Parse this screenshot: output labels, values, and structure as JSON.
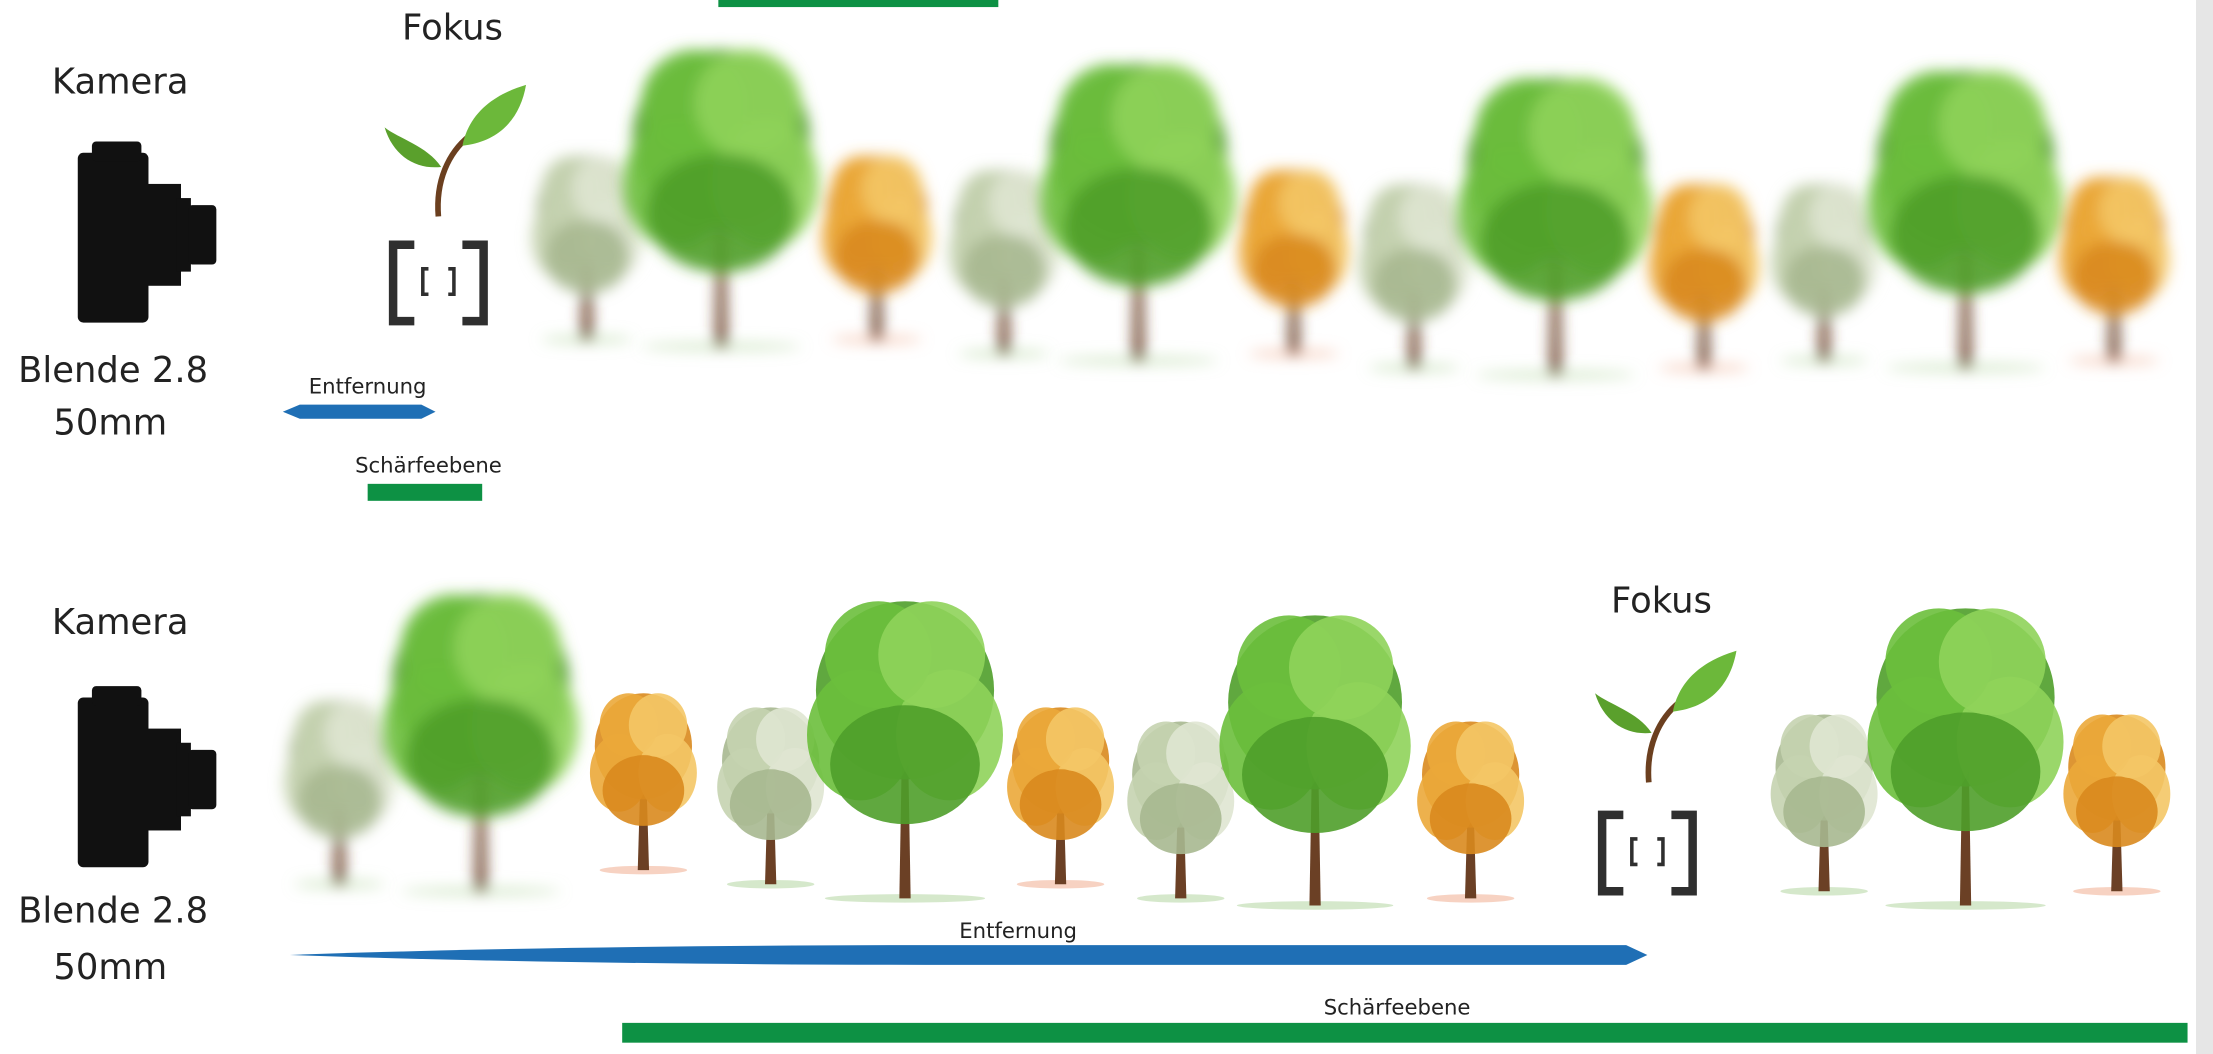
{
  "panels": [
    {
      "camera": "Kamera",
      "aperture": "Blende 2.8",
      "focal_length": "50mm",
      "focus": "Fokus",
      "distance": "Entfernung",
      "depth_of_field": "Schärfeebene"
    },
    {
      "camera": "Kamera",
      "aperture": "Blende 2.8",
      "focal_length": "50mm",
      "focus": "Fokus",
      "distance": "Entfernung",
      "depth_of_field": "Schärfeebene"
    }
  ]
}
